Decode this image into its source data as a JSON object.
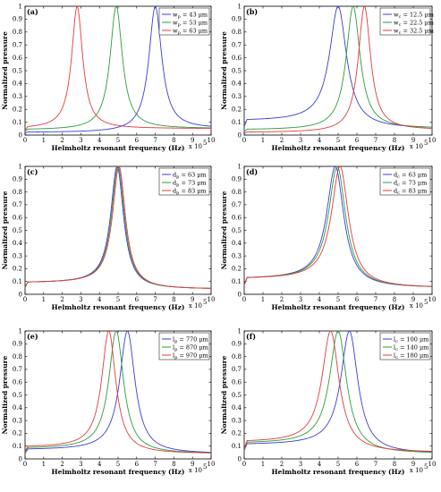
{
  "chart_data": [
    {
      "type": "line",
      "panel_label": "(a)",
      "xlabel": "Helmholtz resonant frequency (Hz)",
      "ylabel": "Normalized pressure",
      "x_multiplier": "x 10",
      "x_exponent": "5",
      "xlim": [
        0,
        10
      ],
      "ylim": [
        0,
        1
      ],
      "xticks": [
        "0",
        "1",
        "2",
        "3",
        "4",
        "5",
        "6",
        "7",
        "8",
        "9",
        "10"
      ],
      "yticks": [
        "0",
        "0.1",
        "0.2",
        "0.3",
        "0.4",
        "0.5",
        "0.6",
        "0.7",
        "0.8",
        "0.9",
        "1"
      ],
      "legend_position": "top-right",
      "series": [
        {
          "name": "w_p = 43 μm",
          "color": "#3b3bd6",
          "peak_x": 7.0,
          "baseline_low": 0.02,
          "baseline_high": 0.05,
          "width": 0.42
        },
        {
          "name": "w_p = 53 μm",
          "color": "#2e9a3e",
          "peak_x": 4.9,
          "baseline_low": 0.04,
          "baseline_high": 0.05,
          "width": 0.4
        },
        {
          "name": "w_p = 63 μm",
          "color": "#e23b3b",
          "peak_x": 2.8,
          "baseline_low": 0.05,
          "baseline_high": 0.05,
          "width": 0.36
        }
      ]
    },
    {
      "type": "line",
      "panel_label": "(b)",
      "xlabel": "Helmholtz resonant frequency (Hz)",
      "ylabel": "Normalized pressure",
      "x_multiplier": "x 10",
      "x_exponent": "5",
      "xlim": [
        0,
        10
      ],
      "ylim": [
        0,
        1
      ],
      "xticks": [
        "0",
        "1",
        "2",
        "3",
        "4",
        "5",
        "6",
        "7",
        "8",
        "9",
        "10"
      ],
      "yticks": [
        "0",
        "0.1",
        "0.2",
        "0.3",
        "0.4",
        "0.5",
        "0.6",
        "0.7",
        "0.8",
        "0.9",
        "1"
      ],
      "legend_position": "top-right",
      "series": [
        {
          "name": "w_c = 12.5 μm",
          "color": "#3b3bd6",
          "peak_x": 5.0,
          "baseline_low": 0.11,
          "baseline_high": 0.05,
          "width": 0.55
        },
        {
          "name": "w_c = 22.5 μm",
          "color": "#2e9a3e",
          "peak_x": 5.8,
          "baseline_low": 0.04,
          "baseline_high": 0.05,
          "width": 0.45
        },
        {
          "name": "w_c = 32.5 μm",
          "color": "#e23b3b",
          "peak_x": 6.4,
          "baseline_low": 0.02,
          "baseline_high": 0.04,
          "width": 0.4
        }
      ]
    },
    {
      "type": "line",
      "panel_label": "(c)",
      "xlabel": "Helmholtz resonant frequency (Hz)",
      "ylabel": "Normalized pressure",
      "x_multiplier": "x 10",
      "x_exponent": "5",
      "xlim": [
        0,
        10
      ],
      "ylim": [
        0,
        1
      ],
      "xticks": [
        "0",
        "1",
        "2",
        "3",
        "4",
        "5",
        "6",
        "7",
        "8",
        "9",
        "10"
      ],
      "yticks": [
        "0",
        "0.1",
        "0.2",
        "0.3",
        "0.4",
        "0.5",
        "0.6",
        "0.7",
        "0.8",
        "0.9",
        "1"
      ],
      "legend_position": "top-right",
      "series": [
        {
          "name": "d_p = 63 μm",
          "color": "#3b3bd6",
          "peak_x": 4.95,
          "baseline_low": 0.09,
          "baseline_high": 0.04,
          "width": 0.42
        },
        {
          "name": "d_p = 73 μm",
          "color": "#2e9a3e",
          "peak_x": 5.0,
          "baseline_low": 0.09,
          "baseline_high": 0.04,
          "width": 0.42
        },
        {
          "name": "d_p = 83 μm",
          "color": "#e23b3b",
          "peak_x": 5.05,
          "baseline_low": 0.09,
          "baseline_high": 0.04,
          "width": 0.42
        }
      ]
    },
    {
      "type": "line",
      "panel_label": "(d)",
      "xlabel": "Helmholtz resonant frequency (Hz)",
      "ylabel": "Normalized pressure",
      "x_multiplier": "x 10",
      "x_exponent": "5",
      "xlim": [
        0,
        10
      ],
      "ylim": [
        0,
        1
      ],
      "xticks": [
        "0",
        "1",
        "2",
        "3",
        "4",
        "5",
        "6",
        "7",
        "8",
        "9",
        "10"
      ],
      "yticks": [
        "0",
        "0.1",
        "0.2",
        "0.3",
        "0.4",
        "0.5",
        "0.6",
        "0.7",
        "0.8",
        "0.9",
        "1"
      ],
      "legend_position": "top-right",
      "series": [
        {
          "name": "d_c = 63 μm",
          "color": "#3b3bd6",
          "peak_x": 4.85,
          "baseline_low": 0.12,
          "baseline_high": 0.05,
          "width": 0.55
        },
        {
          "name": "d_c = 73 μm",
          "color": "#2e9a3e",
          "peak_x": 4.95,
          "baseline_low": 0.12,
          "baseline_high": 0.05,
          "width": 0.55
        },
        {
          "name": "d_c = 83 μm",
          "color": "#e23b3b",
          "peak_x": 5.1,
          "baseline_low": 0.12,
          "baseline_high": 0.05,
          "width": 0.55
        }
      ]
    },
    {
      "type": "line",
      "panel_label": "(e)",
      "xlabel": "Helmholtz resonant frequency (Hz)",
      "ylabel": "Normalized pressure",
      "x_multiplier": "x 10",
      "x_exponent": "5",
      "xlim": [
        0,
        10
      ],
      "ylim": [
        0,
        1
      ],
      "xticks": [
        "0",
        "1",
        "2",
        "3",
        "4",
        "5",
        "6",
        "7",
        "8",
        "9",
        "10"
      ],
      "yticks": [
        "0",
        "0.1",
        "0.2",
        "0.3",
        "0.4",
        "0.5",
        "0.6",
        "0.7",
        "0.8",
        "0.9",
        "1"
      ],
      "legend_position": "top-right",
      "series": [
        {
          "name": "l_p = 770 μm",
          "color": "#3b3bd6",
          "peak_x": 5.5,
          "baseline_low": 0.07,
          "baseline_high": 0.04,
          "width": 0.5
        },
        {
          "name": "l_p = 870 μm",
          "color": "#2e9a3e",
          "peak_x": 4.9,
          "baseline_low": 0.08,
          "baseline_high": 0.04,
          "width": 0.48
        },
        {
          "name": "l_p = 970 μm",
          "color": "#e23b3b",
          "peak_x": 4.5,
          "baseline_low": 0.09,
          "baseline_high": 0.04,
          "width": 0.46
        }
      ]
    },
    {
      "type": "line",
      "panel_label": "(f)",
      "xlabel": "Helmholtz resonant frequency (Hz)",
      "ylabel": "Normalized pressure",
      "x_multiplier": "x 10",
      "x_exponent": "5",
      "xlim": [
        0,
        10
      ],
      "ylim": [
        0,
        1
      ],
      "xticks": [
        "0",
        "1",
        "2",
        "3",
        "4",
        "5",
        "6",
        "7",
        "8",
        "9",
        "10"
      ],
      "yticks": [
        "0",
        "0.1",
        "0.2",
        "0.3",
        "0.4",
        "0.5",
        "0.6",
        "0.7",
        "0.8",
        "0.9",
        "1"
      ],
      "legend_position": "top-right",
      "series": [
        {
          "name": "l_c = 100 μm",
          "color": "#3b3bd6",
          "peak_x": 5.6,
          "baseline_low": 0.11,
          "baseline_high": 0.04,
          "width": 0.55
        },
        {
          "name": "l_c = 140 μm",
          "color": "#2e9a3e",
          "peak_x": 5.0,
          "baseline_low": 0.12,
          "baseline_high": 0.04,
          "width": 0.55
        },
        {
          "name": "l_c = 180 μm",
          "color": "#e23b3b",
          "peak_x": 4.6,
          "baseline_low": 0.13,
          "baseline_high": 0.05,
          "width": 0.55
        }
      ]
    }
  ]
}
